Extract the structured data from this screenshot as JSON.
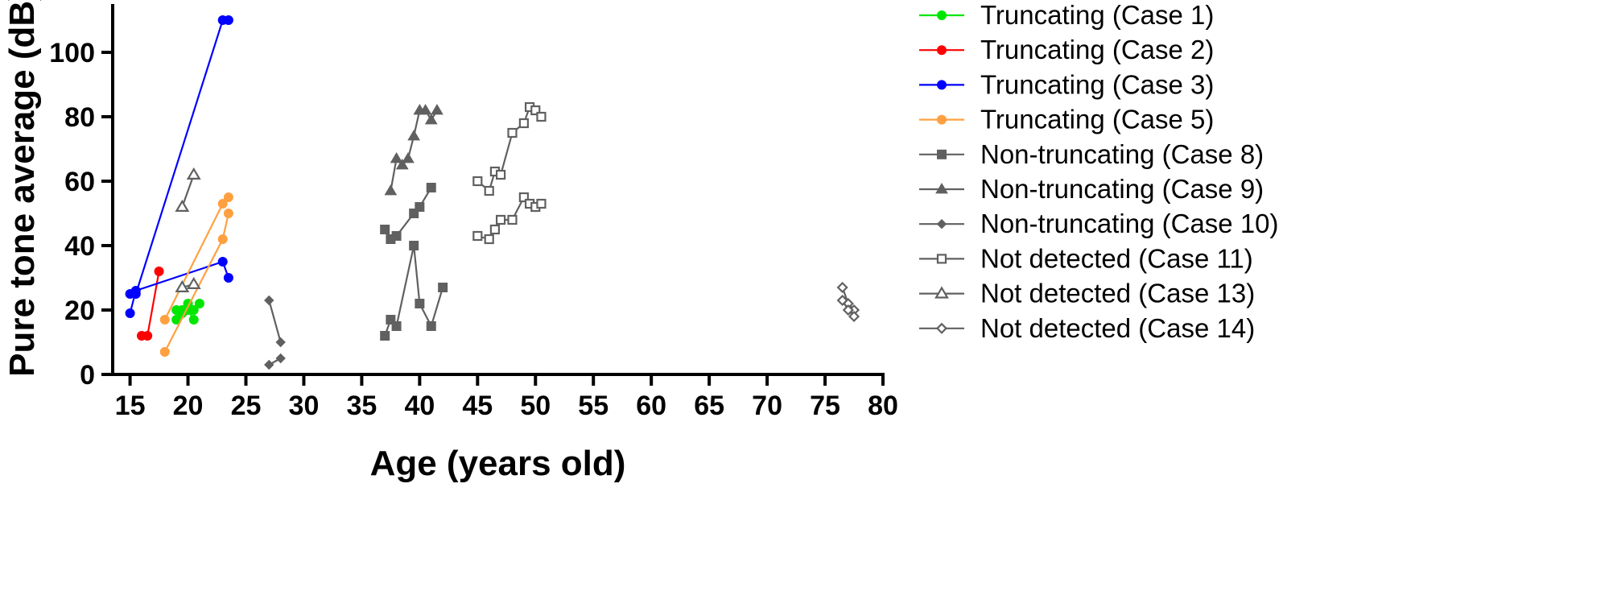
{
  "chart_data": {
    "type": "scatter",
    "title": "",
    "xlabel": "Age (years old)",
    "ylabel": "Pure tone average (dB)",
    "xlim": [
      13.5,
      80
    ],
    "ylim": [
      0,
      115
    ],
    "xticks": [
      15,
      20,
      25,
      30,
      35,
      40,
      45,
      50,
      55,
      60,
      65,
      70,
      75,
      80
    ],
    "yticks": [
      0,
      20,
      40,
      60,
      80,
      100
    ],
    "grid": false,
    "legend_position": "right",
    "series": [
      {
        "name": "Truncating (Case 1)",
        "color": "#00e600",
        "marker": "circle-filled",
        "segments": [
          {
            "x": [
              19.0,
              19.5,
              20.0,
              20.5,
              21.0
            ],
            "y": [
              20,
              20,
              22,
              20,
              22
            ]
          },
          {
            "x": [
              19.0,
              19.5,
              20.0,
              20.5
            ],
            "y": [
              17,
              19,
              20,
              17
            ]
          }
        ]
      },
      {
        "name": "Truncating (Case 2)",
        "color": "#ff0000",
        "marker": "circle-filled",
        "segments": [
          {
            "x": [
              16.0,
              16.5,
              17.5
            ],
            "y": [
              12,
              12,
              32
            ]
          }
        ]
      },
      {
        "name": "Truncating (Case 3)",
        "color": "#0000ff",
        "marker": "circle-filled",
        "segments": [
          {
            "x": [
              15.0,
              15.5,
              23.0,
              23.5
            ],
            "y": [
              19,
              26,
              35,
              30
            ]
          },
          {
            "x": [
              15.0,
              15.5,
              23.0,
              23.5
            ],
            "y": [
              25,
              25,
              110,
              110
            ]
          }
        ]
      },
      {
        "name": "Truncating (Case 5)",
        "color": "#ffa040",
        "marker": "circle-filled",
        "segments": [
          {
            "x": [
              18.0,
              23.0,
              23.5
            ],
            "y": [
              7,
              42,
              50
            ]
          },
          {
            "x": [
              18.0,
              23.0,
              23.5
            ],
            "y": [
              17,
              53,
              55
            ]
          }
        ]
      },
      {
        "name": "Non-truncating (Case 8)",
        "color": "#606060",
        "marker": "square-filled",
        "segments": [
          {
            "x": [
              37.0,
              37.5,
              38.0,
              39.5,
              40.0,
              41.0,
              42.0
            ],
            "y": [
              12,
              17,
              15,
              40,
              22,
              15,
              27
            ]
          },
          {
            "x": [
              37.0,
              37.5,
              38.0,
              39.5,
              40.0,
              41.0
            ],
            "y": [
              45,
              42,
              43,
              50,
              52,
              58
            ]
          }
        ]
      },
      {
        "name": "Non-truncating (Case 9)",
        "color": "#606060",
        "marker": "triangle-filled",
        "segments": [
          {
            "x": [
              37.5,
              38.0,
              38.5,
              39.0,
              39.5,
              40.0,
              40.5,
              41.0,
              41.5
            ],
            "y": [
              57,
              67,
              65,
              67,
              74,
              82,
              82,
              79,
              82
            ]
          }
        ]
      },
      {
        "name": "Non-truncating (Case 10)",
        "color": "#606060",
        "marker": "diamond-filled",
        "segments": [
          {
            "x": [
              27.0,
              28.0
            ],
            "y": [
              23,
              10
            ]
          },
          {
            "x": [
              27.0,
              28.0
            ],
            "y": [
              3,
              5
            ]
          }
        ]
      },
      {
        "name": "Not detected (Case 11)",
        "color": "#606060",
        "marker": "square-open",
        "segments": [
          {
            "x": [
              45.0,
              46.0,
              46.5,
              47.0,
              48.0,
              49.0,
              49.5,
              50.0,
              50.5
            ],
            "y": [
              60,
              57,
              63,
              62,
              75,
              78,
              83,
              82,
              80
            ]
          },
          {
            "x": [
              45.0,
              46.0,
              46.5,
              47.0,
              48.0,
              49.0,
              49.5,
              50.0,
              50.5
            ],
            "y": [
              43,
              42,
              45,
              48,
              48,
              55,
              53,
              52,
              53
            ]
          }
        ]
      },
      {
        "name": "Not detected (Case 13)",
        "color": "#606060",
        "marker": "triangle-open",
        "segments": [
          {
            "x": [
              19.5,
              20.5
            ],
            "y": [
              52,
              62
            ]
          },
          {
            "x": [
              19.5,
              20.5
            ],
            "y": [
              27,
              28
            ]
          }
        ]
      },
      {
        "name": "Not detected (Case 14)",
        "color": "#606060",
        "marker": "diamond-open",
        "segments": [
          {
            "x": [
              76.5,
              77.0,
              77.5
            ],
            "y": [
              27,
              22,
              20
            ]
          },
          {
            "x": [
              76.5,
              77.0,
              77.5
            ],
            "y": [
              23,
              20,
              18
            ]
          }
        ]
      }
    ]
  }
}
